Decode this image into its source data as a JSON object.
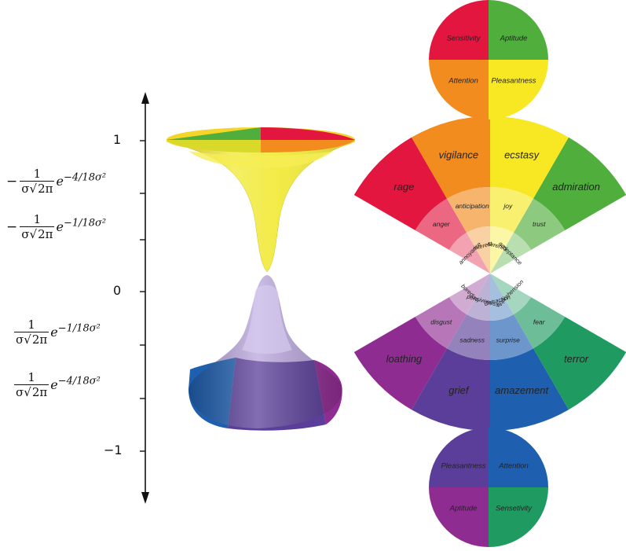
{
  "axis": {
    "ticks": [
      {
        "label": "1",
        "kind": "number"
      },
      {
        "label": "−",
        "kind": "fraction",
        "num": "1",
        "den_sigma": "σ",
        "den_root": "2π",
        "base": "e",
        "exponent": "−4/18σ²"
      },
      {
        "label": "−",
        "kind": "fraction",
        "num": "1",
        "den_sigma": "σ",
        "den_root": "2π",
        "base": "e",
        "exponent": "−1/18σ²"
      },
      {
        "label": "0",
        "kind": "number"
      },
      {
        "label": "",
        "kind": "fraction",
        "num": "1",
        "den_sigma": "σ",
        "den_root": "2π",
        "base": "e",
        "exponent": "−1/18σ²"
      },
      {
        "label": "",
        "kind": "fraction",
        "num": "1",
        "den_sigma": "σ",
        "den_root": "2π",
        "base": "e",
        "exponent": "−4/18σ²"
      },
      {
        "label": "−1",
        "kind": "number"
      }
    ]
  },
  "top_circle": {
    "upper_left": "Sensitivity",
    "upper_right": "Aptitude",
    "lower_left": "Attention",
    "lower_right": "Pleasantness",
    "colors": {
      "upper_left": "#e2163e",
      "upper_right": "#4fae3c",
      "lower_left": "#f28c1f",
      "lower_right": "#f7e823"
    }
  },
  "bottom_circle": {
    "upper_left": "Pleasantness",
    "upper_right": "Attention",
    "lower_left": "Aptitude",
    "lower_right": "Sensetivity",
    "colors": {
      "upper_left": "#5a3e99",
      "upper_right": "#1f5fb0",
      "lower_left": "#8f2c91",
      "lower_right": "#1f9a61"
    }
  },
  "upper_wheel": {
    "outer": [
      "rage",
      "vigilance",
      "ecstasy",
      "admiration"
    ],
    "middle": [
      "anger",
      "anticipation",
      "joy",
      "trust"
    ],
    "inner": [
      "annoyance",
      "interest",
      "serenity",
      "acceptance"
    ],
    "colors": [
      "#e2163e",
      "#f28c1f",
      "#f7e823",
      "#4fae3c"
    ]
  },
  "lower_wheel": {
    "outer": [
      "loathing",
      "grief",
      "amazement",
      "terror"
    ],
    "middle": [
      "disgust",
      "sadness",
      "surprise",
      "fear"
    ],
    "inner": [
      "boredom",
      "pensiveness",
      "distraction",
      "apprehension"
    ],
    "colors": [
      "#8f2c91",
      "#5a3e99",
      "#1f5fb0",
      "#1f9a61"
    ]
  }
}
